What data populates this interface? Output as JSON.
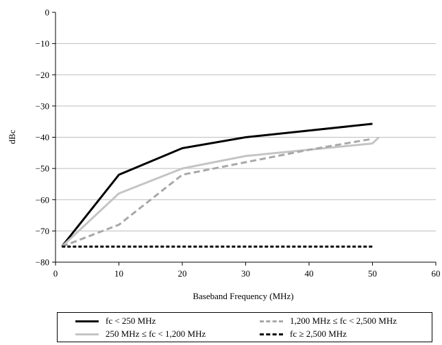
{
  "chart_data": {
    "type": "line",
    "title": "",
    "xlabel": "Baseband Frequency (MHz)",
    "ylabel": "dBc",
    "xlim": [
      0,
      60
    ],
    "ylim": [
      -80,
      0
    ],
    "x_ticks": [
      "0",
      "10",
      "20",
      "30",
      "40",
      "50",
      "60"
    ],
    "y_ticks": [
      "0",
      "−10",
      "−20",
      "−30",
      "−40",
      "−50",
      "−60",
      "−70",
      "−80"
    ],
    "grid": "horizontal",
    "legend_position": "bottom",
    "series": [
      {
        "name": "fc < 250 MHz",
        "color": "#000000",
        "dash": "solid",
        "points": [
          [
            1,
            -75
          ],
          [
            10,
            -52
          ],
          [
            20,
            -43.5
          ],
          [
            30,
            -40
          ],
          [
            50,
            -35.7
          ]
        ]
      },
      {
        "name": "250 MHz ≤ fc < 1,200 MHz",
        "color": "#c4c4c4",
        "dash": "solid",
        "points": [
          [
            1,
            -75
          ],
          [
            10,
            -58
          ],
          [
            20,
            -50
          ],
          [
            30,
            -46
          ],
          [
            50,
            -42
          ],
          [
            51,
            -40
          ]
        ]
      },
      {
        "name": "1,200 MHz ≤ fc < 2,500 MHz",
        "color": "#a8a8a8",
        "dash": "dashed",
        "points": [
          [
            1,
            -75
          ],
          [
            10,
            -68
          ],
          [
            20,
            -52
          ],
          [
            30,
            -48
          ],
          [
            40,
            -44
          ],
          [
            50,
            -40.5
          ]
        ]
      },
      {
        "name": "fc ≥ 2,500 MHz",
        "color": "#000000",
        "dash": "dotted",
        "points": [
          [
            1,
            -75
          ],
          [
            50,
            -75
          ]
        ]
      }
    ]
  }
}
